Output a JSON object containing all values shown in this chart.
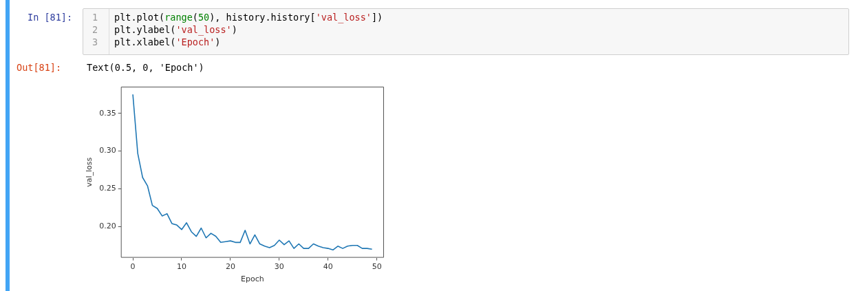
{
  "chart_data": {
    "type": "line",
    "xlabel": "Epoch",
    "ylabel": "val_loss",
    "x": [
      0,
      1,
      2,
      3,
      4,
      5,
      6,
      7,
      8,
      9,
      10,
      11,
      12,
      13,
      14,
      15,
      16,
      17,
      18,
      19,
      20,
      21,
      22,
      23,
      24,
      25,
      26,
      27,
      28,
      29,
      30,
      31,
      32,
      33,
      34,
      35,
      36,
      37,
      38,
      39,
      40,
      41,
      42,
      43,
      44,
      45,
      46,
      47,
      48,
      49
    ],
    "series": [
      {
        "color": "#1f77b4",
        "values": [
          0.375,
          0.297,
          0.265,
          0.254,
          0.228,
          0.224,
          0.214,
          0.217,
          0.204,
          0.202,
          0.196,
          0.205,
          0.193,
          0.187,
          0.198,
          0.185,
          0.191,
          0.187,
          0.179,
          0.18,
          0.181,
          0.179,
          0.179,
          0.195,
          0.177,
          0.189,
          0.177,
          0.174,
          0.172,
          0.175,
          0.182,
          0.176,
          0.181,
          0.171,
          0.177,
          0.171,
          0.171,
          0.177,
          0.174,
          0.172,
          0.171,
          0.169,
          0.174,
          0.171,
          0.174,
          0.175,
          0.175,
          0.171,
          0.171,
          0.17
        ]
      }
    ],
    "xlim": [
      -2.45,
      51.45
    ],
    "xticks": [
      0,
      10,
      20,
      30,
      40,
      50
    ],
    "ylim": [
      0.1587,
      0.3853
    ],
    "yticks": [
      {
        "value": 0.2,
        "label": "0.20"
      },
      {
        "value": 0.25,
        "label": "0.25"
      },
      {
        "value": 0.3,
        "label": "0.30"
      },
      {
        "value": 0.35,
        "label": "0.35"
      }
    ],
    "grid": false,
    "legend": false,
    "marker": "none",
    "line_style": "solid",
    "annotations": [
      "In [81]:",
      "1",
      "plt.plot(range(50), history.history['val_loss'])",
      "2",
      "plt.ylabel('val_loss')",
      "3",
      "plt.xlabel('Epoch')",
      "Out[81]:",
      "Text(0.5, 0, 'Epoch')"
    ]
  }
}
